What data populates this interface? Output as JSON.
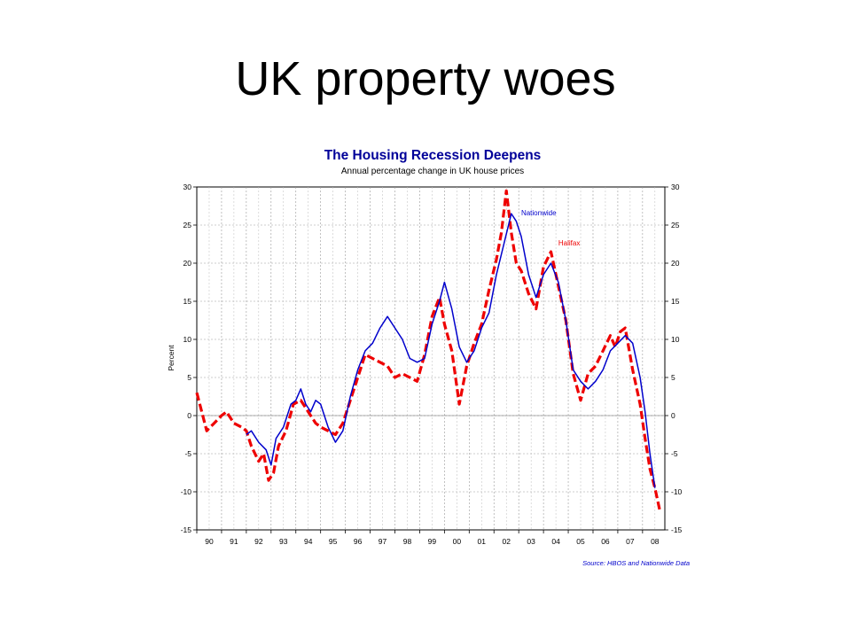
{
  "slide": {
    "title": "UK property woes"
  },
  "chart_data": {
    "type": "line",
    "title": "The Housing Recession Deepens",
    "subtitle": "Annual percentage change in UK house prices",
    "ylabel": "Percent",
    "xlabel": "",
    "ylim": [
      -15,
      30
    ],
    "xlim": [
      1990,
      2008.9
    ],
    "y_ticks": [
      "30",
      "25",
      "20",
      "15",
      "10",
      "5",
      "0",
      "-5",
      "-10",
      "-15"
    ],
    "x_ticks": [
      "90",
      "91",
      "92",
      "93",
      "94",
      "95",
      "96",
      "97",
      "98",
      "99",
      "00",
      "01",
      "02",
      "03",
      "04",
      "05",
      "06",
      "07",
      "08"
    ],
    "grid": true,
    "source": "Source: HBOS and Nationwide Data",
    "series": [
      {
        "name": "Nationwide",
        "color": "#0000cc",
        "style": "solid",
        "points": [
          [
            1992.0,
            -2.5
          ],
          [
            1992.2,
            -2.0
          ],
          [
            1992.5,
            -3.5
          ],
          [
            1992.8,
            -4.5
          ],
          [
            1993.0,
            -6.5
          ],
          [
            1993.2,
            -3.0
          ],
          [
            1993.5,
            -1.5
          ],
          [
            1993.8,
            1.5
          ],
          [
            1994.0,
            2.0
          ],
          [
            1994.2,
            3.5
          ],
          [
            1994.4,
            1.5
          ],
          [
            1994.6,
            0.5
          ],
          [
            1994.8,
            2.0
          ],
          [
            1995.0,
            1.5
          ],
          [
            1995.3,
            -1.5
          ],
          [
            1995.6,
            -3.5
          ],
          [
            1995.9,
            -2.0
          ],
          [
            1996.2,
            2.5
          ],
          [
            1996.5,
            6.0
          ],
          [
            1996.8,
            8.5
          ],
          [
            1997.1,
            9.5
          ],
          [
            1997.4,
            11.5
          ],
          [
            1997.7,
            13.0
          ],
          [
            1998.0,
            11.5
          ],
          [
            1998.3,
            10.0
          ],
          [
            1998.6,
            7.5
          ],
          [
            1998.9,
            7.0
          ],
          [
            1999.2,
            7.5
          ],
          [
            1999.5,
            12.0
          ],
          [
            1999.8,
            15.0
          ],
          [
            2000.0,
            17.5
          ],
          [
            2000.3,
            14.0
          ],
          [
            2000.6,
            9.0
          ],
          [
            2000.9,
            7.0
          ],
          [
            2001.2,
            8.5
          ],
          [
            2001.5,
            11.5
          ],
          [
            2001.8,
            13.5
          ],
          [
            2002.1,
            18.5
          ],
          [
            2002.4,
            22.5
          ],
          [
            2002.7,
            26.5
          ],
          [
            2002.9,
            25.5
          ],
          [
            2003.1,
            23.5
          ],
          [
            2003.4,
            18.5
          ],
          [
            2003.7,
            15.5
          ],
          [
            2004.0,
            18.5
          ],
          [
            2004.3,
            20.0
          ],
          [
            2004.6,
            17.5
          ],
          [
            2004.9,
            12.5
          ],
          [
            2005.2,
            6.0
          ],
          [
            2005.5,
            4.5
          ],
          [
            2005.8,
            3.5
          ],
          [
            2006.1,
            4.5
          ],
          [
            2006.4,
            6.0
          ],
          [
            2006.7,
            8.5
          ],
          [
            2007.0,
            9.5
          ],
          [
            2007.3,
            10.5
          ],
          [
            2007.6,
            9.5
          ],
          [
            2007.9,
            5.0
          ],
          [
            2008.1,
            0.5
          ],
          [
            2008.3,
            -5.0
          ],
          [
            2008.5,
            -9.5
          ]
        ]
      },
      {
        "name": "Halifax",
        "color": "#ee0000",
        "style": "dashed",
        "points": [
          [
            1990.0,
            3.0
          ],
          [
            1990.2,
            0.5
          ],
          [
            1990.4,
            -2.0
          ],
          [
            1990.7,
            -1.0
          ],
          [
            1991.0,
            0.0
          ],
          [
            1991.2,
            0.5
          ],
          [
            1991.5,
            -1.0
          ],
          [
            1991.8,
            -1.5
          ],
          [
            1992.0,
            -2.0
          ],
          [
            1992.2,
            -4.0
          ],
          [
            1992.5,
            -6.0
          ],
          [
            1992.7,
            -5.0
          ],
          [
            1992.9,
            -8.5
          ],
          [
            1993.1,
            -7.5
          ],
          [
            1993.3,
            -4.0
          ],
          [
            1993.6,
            -2.0
          ],
          [
            1993.9,
            1.5
          ],
          [
            1994.2,
            2.0
          ],
          [
            1994.5,
            0.5
          ],
          [
            1994.8,
            -1.0
          ],
          [
            1995.0,
            -1.5
          ],
          [
            1995.3,
            -2.0
          ],
          [
            1995.6,
            -2.5
          ],
          [
            1995.9,
            -1.0
          ],
          [
            1996.2,
            2.0
          ],
          [
            1996.5,
            5.0
          ],
          [
            1996.8,
            8.0
          ],
          [
            1997.1,
            7.5
          ],
          [
            1997.4,
            7.0
          ],
          [
            1997.7,
            6.5
          ],
          [
            1998.0,
            5.0
          ],
          [
            1998.3,
            5.5
          ],
          [
            1998.6,
            5.0
          ],
          [
            1998.9,
            4.5
          ],
          [
            1999.2,
            8.0
          ],
          [
            1999.5,
            13.0
          ],
          [
            1999.8,
            15.5
          ],
          [
            2000.0,
            12.0
          ],
          [
            2000.3,
            8.5
          ],
          [
            2000.6,
            1.5
          ],
          [
            2000.9,
            6.5
          ],
          [
            2001.2,
            9.5
          ],
          [
            2001.5,
            12.0
          ],
          [
            2001.8,
            16.5
          ],
          [
            2002.1,
            20.5
          ],
          [
            2002.3,
            24.0
          ],
          [
            2002.5,
            29.5
          ],
          [
            2002.7,
            24.0
          ],
          [
            2002.9,
            20.0
          ],
          [
            2003.1,
            19.0
          ],
          [
            2003.4,
            16.0
          ],
          [
            2003.7,
            14.0
          ],
          [
            2004.0,
            19.5
          ],
          [
            2004.3,
            21.5
          ],
          [
            2004.6,
            17.0
          ],
          [
            2004.9,
            12.5
          ],
          [
            2005.2,
            5.5
          ],
          [
            2005.5,
            2.0
          ],
          [
            2005.8,
            5.5
          ],
          [
            2006.1,
            6.5
          ],
          [
            2006.4,
            8.5
          ],
          [
            2006.7,
            10.5
          ],
          [
            2006.9,
            9.0
          ],
          [
            2007.1,
            11.0
          ],
          [
            2007.3,
            11.5
          ],
          [
            2007.6,
            6.0
          ],
          [
            2007.9,
            1.5
          ],
          [
            2008.1,
            -3.0
          ],
          [
            2008.3,
            -7.0
          ],
          [
            2008.5,
            -9.5
          ],
          [
            2008.7,
            -12.5
          ]
        ]
      }
    ],
    "annotations": [
      {
        "text": "Nationwide",
        "color": "#0000cc",
        "x": 2003.1,
        "y": 26.3
      },
      {
        "text": "Halifax",
        "color": "#ee0000",
        "x": 2004.6,
        "y": 22.3
      }
    ]
  }
}
